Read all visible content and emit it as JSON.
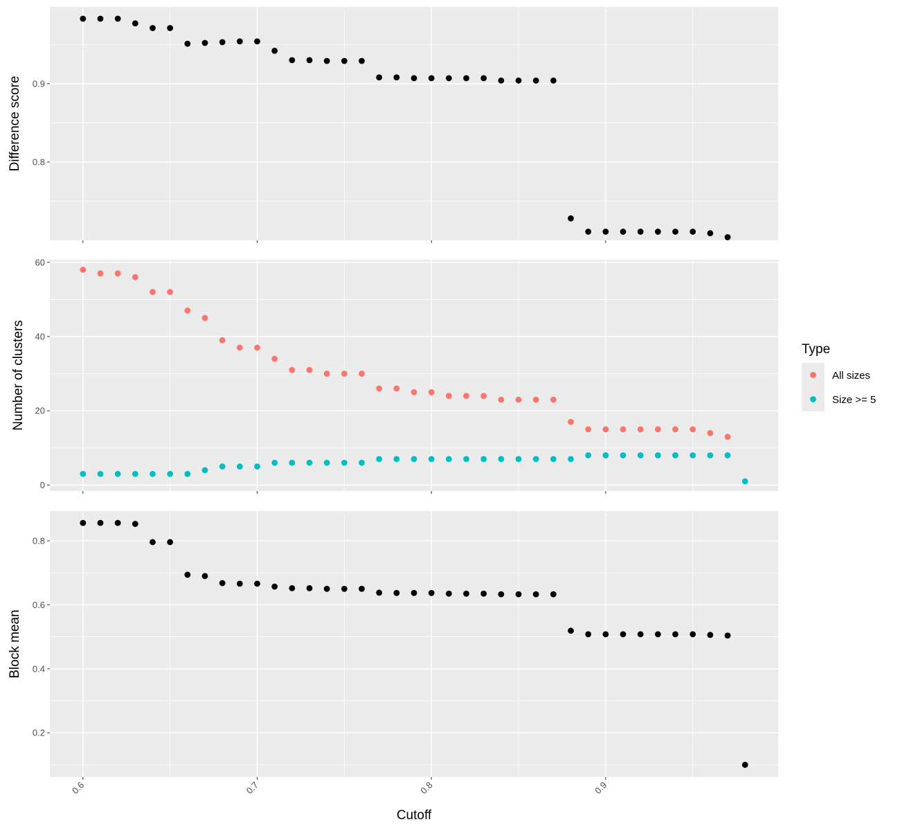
{
  "colors": {
    "panel_bg": "#EBEBEB",
    "grid_major": "#FFFFFF",
    "tick_text": "#4D4D4D",
    "tick_mark": "#333333",
    "black_point": "#000000",
    "all_sizes": "#F8766D",
    "size_ge_5": "#00BFC4"
  },
  "chart_data": [
    {
      "type": "scatter",
      "ylabel": "Difference score",
      "xlim": [
        0.581,
        0.999
      ],
      "ylim": [
        0.7,
        0.998
      ],
      "yticks": [
        0.8,
        0.9
      ],
      "ytick_labels": [
        "0.8",
        "0.9"
      ],
      "x_values": [
        0.6,
        0.61,
        0.62,
        0.63,
        0.64,
        0.65,
        0.66,
        0.67,
        0.68,
        0.69,
        0.7,
        0.71,
        0.72,
        0.73,
        0.74,
        0.75,
        0.76,
        0.77,
        0.78,
        0.79,
        0.8,
        0.81,
        0.82,
        0.83,
        0.84,
        0.85,
        0.86,
        0.87,
        0.88,
        0.89,
        0.9,
        0.91,
        0.92,
        0.93,
        0.94,
        0.95,
        0.96,
        0.97
      ],
      "series": [
        {
          "color_key": "black_point",
          "values": [
            0.983,
            0.983,
            0.983,
            0.977,
            0.971,
            0.971,
            0.951,
            0.952,
            0.953,
            0.954,
            0.954,
            0.942,
            0.93,
            0.93,
            0.929,
            0.929,
            0.929,
            0.908,
            0.908,
            0.907,
            0.907,
            0.907,
            0.907,
            0.907,
            0.904,
            0.904,
            0.904,
            0.904,
            0.728,
            0.711,
            0.711,
            0.711,
            0.711,
            0.711,
            0.711,
            0.711,
            0.709,
            0.704
          ]
        }
      ]
    },
    {
      "type": "scatter",
      "ylabel": "Number of clusters",
      "xlim": [
        0.581,
        0.999
      ],
      "ylim": [
        -1.6,
        60.7
      ],
      "yticks": [
        0,
        20,
        40,
        60
      ],
      "ytick_labels": [
        "0",
        "20",
        "40",
        "60"
      ],
      "x_values": [
        0.6,
        0.61,
        0.62,
        0.63,
        0.64,
        0.65,
        0.66,
        0.67,
        0.68,
        0.69,
        0.7,
        0.71,
        0.72,
        0.73,
        0.74,
        0.75,
        0.76,
        0.77,
        0.78,
        0.79,
        0.8,
        0.81,
        0.82,
        0.83,
        0.84,
        0.85,
        0.86,
        0.87,
        0.88,
        0.89,
        0.9,
        0.91,
        0.92,
        0.93,
        0.94,
        0.95,
        0.96,
        0.97,
        0.98
      ],
      "series": [
        {
          "name": "All sizes",
          "color_key": "all_sizes",
          "values": [
            58,
            57,
            57,
            56,
            52,
            52,
            47,
            45,
            39,
            37,
            37,
            34,
            31,
            31,
            30,
            30,
            30,
            26,
            26,
            25,
            25,
            24,
            24,
            24,
            23,
            23,
            23,
            23,
            17,
            15,
            15,
            15,
            15,
            15,
            15,
            15,
            14,
            13,
            null
          ]
        },
        {
          "name": "Size >= 5",
          "color_key": "size_ge_5",
          "values": [
            3,
            3,
            3,
            3,
            3,
            3,
            3,
            4,
            5,
            5,
            5,
            6,
            6,
            6,
            6,
            6,
            6,
            7,
            7,
            7,
            7,
            7,
            7,
            7,
            7,
            7,
            7,
            7,
            7,
            8,
            8,
            8,
            8,
            8,
            8,
            8,
            8,
            8,
            1
          ]
        }
      ]
    },
    {
      "type": "scatter",
      "ylabel": "Block mean",
      "xlabel": "Cutoff",
      "xlim": [
        0.581,
        0.999
      ],
      "ylim": [
        0.062,
        0.893
      ],
      "yticks": [
        0.2,
        0.4,
        0.6,
        0.8
      ],
      "ytick_labels": [
        "0.2",
        "0.4",
        "0.6",
        "0.8"
      ],
      "xticks": [
        0.6,
        0.7,
        0.8,
        0.9
      ],
      "xtick_labels": [
        "0.6",
        "0.7",
        "0.8",
        "0.9"
      ],
      "x_values": [
        0.6,
        0.61,
        0.62,
        0.63,
        0.64,
        0.65,
        0.66,
        0.67,
        0.68,
        0.69,
        0.7,
        0.71,
        0.72,
        0.73,
        0.74,
        0.75,
        0.76,
        0.77,
        0.78,
        0.79,
        0.8,
        0.81,
        0.82,
        0.83,
        0.84,
        0.85,
        0.86,
        0.87,
        0.88,
        0.89,
        0.9,
        0.91,
        0.92,
        0.93,
        0.94,
        0.95,
        0.96,
        0.97,
        0.98
      ],
      "series": [
        {
          "color_key": "black_point",
          "values": [
            0.856,
            0.856,
            0.856,
            0.853,
            0.796,
            0.796,
            0.694,
            0.69,
            0.668,
            0.666,
            0.666,
            0.657,
            0.652,
            0.652,
            0.65,
            0.65,
            0.65,
            0.638,
            0.637,
            0.637,
            0.637,
            0.635,
            0.635,
            0.635,
            0.633,
            0.633,
            0.633,
            0.633,
            0.519,
            0.508,
            0.508,
            0.508,
            0.508,
            0.508,
            0.508,
            0.508,
            0.506,
            0.504,
            0.1
          ]
        }
      ]
    }
  ],
  "legend": {
    "title": "Type",
    "placement": "right",
    "items": [
      {
        "label": "All sizes",
        "color_key": "all_sizes"
      },
      {
        "label": "Size >= 5",
        "color_key": "size_ge_5"
      }
    ]
  }
}
